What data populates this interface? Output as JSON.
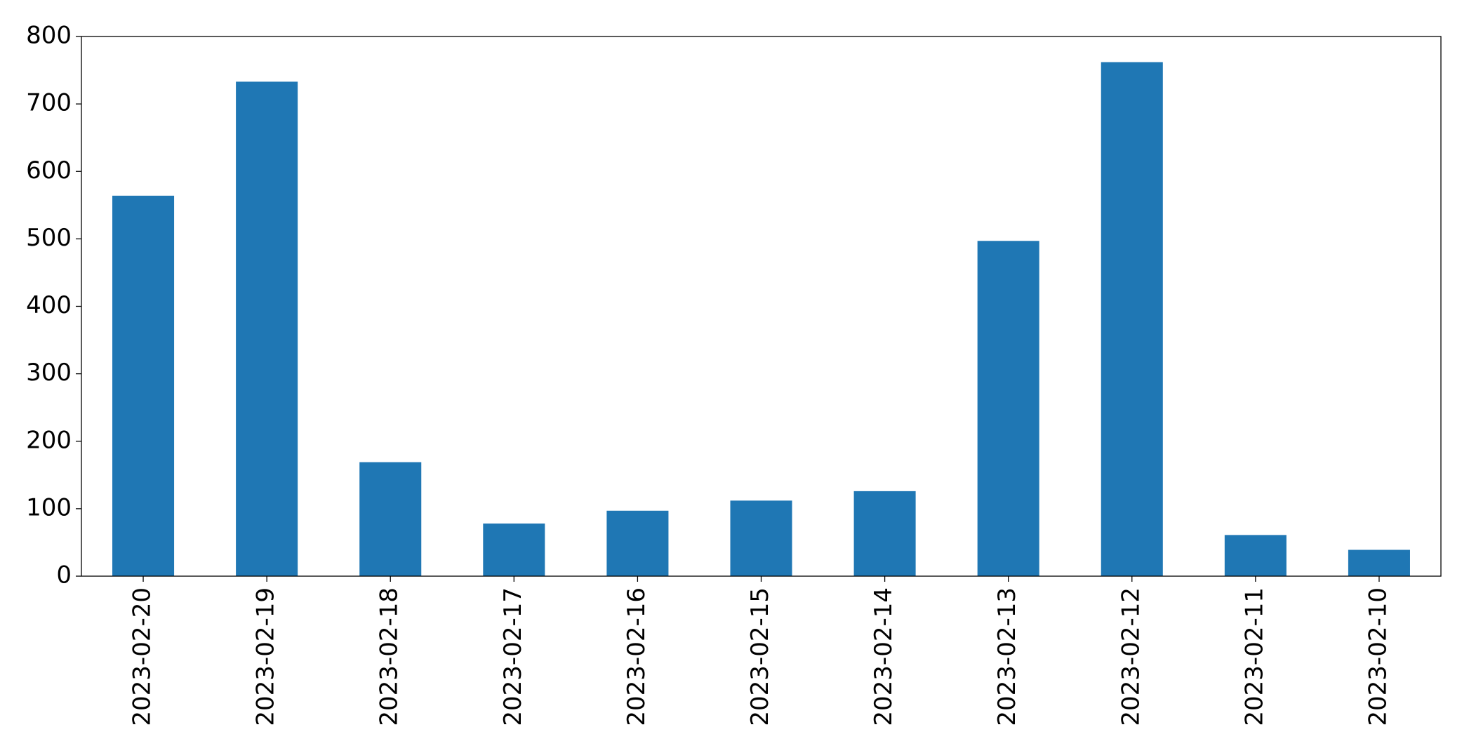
{
  "chart_data": {
    "type": "bar",
    "categories": [
      "2023-02-20",
      "2023-02-19",
      "2023-02-18",
      "2023-02-17",
      "2023-02-16",
      "2023-02-15",
      "2023-02-14",
      "2023-02-13",
      "2023-02-12",
      "2023-02-11",
      "2023-02-10"
    ],
    "values": [
      564,
      733,
      169,
      78,
      97,
      112,
      126,
      497,
      762,
      61,
      39
    ],
    "color": "#1f77b4",
    "ylim": [
      0,
      800
    ],
    "yticks": [
      0,
      100,
      200,
      300,
      400,
      500,
      600,
      700,
      800
    ],
    "grid": false
  }
}
